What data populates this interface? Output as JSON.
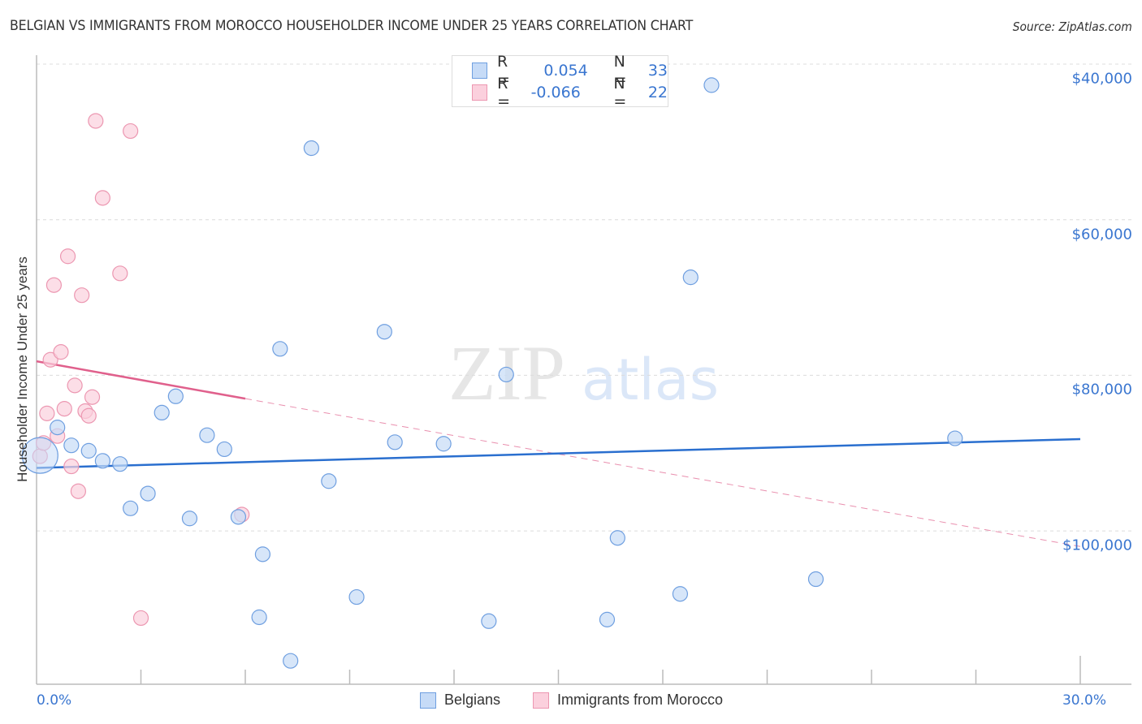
{
  "title": "BELGIAN VS IMMIGRANTS FROM MOROCCO HOUSEHOLDER INCOME UNDER 25 YEARS CORRELATION CHART",
  "source": "Source: ZipAtlas.com",
  "watermark": {
    "zip": "ZIP",
    "atlas": "atlas"
  },
  "colors": {
    "belgians_fill": "#c6dbf7",
    "belgians_stroke": "#6f9fe0",
    "belgians_line": "#2a6fcf",
    "morocco_fill": "#fbd0dd",
    "morocco_stroke": "#ec97b1",
    "morocco_line": "#e0608c",
    "axis_text": "#3a76d0"
  },
  "stats_legend": {
    "rows": [
      {
        "r_label": "R =",
        "r_value": "0.054",
        "n_label": "N =",
        "n_value": "33"
      },
      {
        "r_label": "R =",
        "r_value": "-0.066",
        "n_label": "N =",
        "n_value": "22"
      }
    ]
  },
  "bottom_legend": [
    {
      "label": "Belgians"
    },
    {
      "label": "Immigrants from Morocco"
    }
  ],
  "axes": {
    "ylabel": "Householder Income Under 25 years",
    "yticks": [
      "$100,000",
      "$80,000",
      "$60,000",
      "$40,000"
    ],
    "xticks": [
      "0.0%",
      "30.0%"
    ]
  },
  "chart_data": {
    "type": "scatter",
    "title": "BELGIAN VS IMMIGRANTS FROM MOROCCO HOUSEHOLDER INCOME UNDER 25 YEARS CORRELATION CHART",
    "xlabel": "",
    "ylabel": "Householder Income Under 25 years",
    "xlim": [
      0,
      30
    ],
    "ylim": [
      22000,
      102000
    ],
    "x_unit": "%",
    "ytick_values": [
      40000,
      60000,
      80000,
      100000
    ],
    "grid": true,
    "legend_position": "bottom",
    "series": [
      {
        "name": "Belgians",
        "R": 0.054,
        "N": 33,
        "trend": {
          "x": [
            0,
            30
          ],
          "y": [
            48100,
            51800
          ]
        },
        "points": [
          {
            "x": 0.1,
            "y": 49700,
            "large": true
          },
          {
            "x": 0.6,
            "y": 53300
          },
          {
            "x": 1.0,
            "y": 51000
          },
          {
            "x": 1.5,
            "y": 50300
          },
          {
            "x": 1.9,
            "y": 49000
          },
          {
            "x": 2.4,
            "y": 48600
          },
          {
            "x": 2.7,
            "y": 42900
          },
          {
            "x": 3.2,
            "y": 44800
          },
          {
            "x": 3.6,
            "y": 55200
          },
          {
            "x": 4.0,
            "y": 57300
          },
          {
            "x": 4.4,
            "y": 41600
          },
          {
            "x": 4.9,
            "y": 52300
          },
          {
            "x": 5.4,
            "y": 50500
          },
          {
            "x": 5.8,
            "y": 41800
          },
          {
            "x": 6.4,
            "y": 28900
          },
          {
            "x": 6.5,
            "y": 37000
          },
          {
            "x": 7.0,
            "y": 63400
          },
          {
            "x": 7.3,
            "y": 23300
          },
          {
            "x": 7.9,
            "y": 89200
          },
          {
            "x": 8.4,
            "y": 46400
          },
          {
            "x": 9.2,
            "y": 31500
          },
          {
            "x": 10.0,
            "y": 65600
          },
          {
            "x": 10.3,
            "y": 51400
          },
          {
            "x": 11.7,
            "y": 51200
          },
          {
            "x": 13.0,
            "y": 28400
          },
          {
            "x": 13.5,
            "y": 60100
          },
          {
            "x": 16.4,
            "y": 28600
          },
          {
            "x": 16.7,
            "y": 39100
          },
          {
            "x": 18.5,
            "y": 31900
          },
          {
            "x": 18.8,
            "y": 72600
          },
          {
            "x": 19.4,
            "y": 97300
          },
          {
            "x": 22.4,
            "y": 33800
          },
          {
            "x": 26.4,
            "y": 51900
          }
        ]
      },
      {
        "name": "Immigrants from Morocco",
        "R": -0.066,
        "N": 22,
        "trend": {
          "x": [
            0,
            6.0,
            30
          ],
          "y": [
            61800,
            57000,
            38000
          ],
          "solid_until_x": 6.0
        },
        "points": [
          {
            "x": 0.1,
            "y": 49600
          },
          {
            "x": 0.2,
            "y": 51300
          },
          {
            "x": 0.3,
            "y": 55100
          },
          {
            "x": 0.4,
            "y": 62000
          },
          {
            "x": 0.5,
            "y": 71600
          },
          {
            "x": 0.6,
            "y": 52200
          },
          {
            "x": 0.7,
            "y": 63000
          },
          {
            "x": 0.8,
            "y": 55700
          },
          {
            "x": 0.9,
            "y": 75300
          },
          {
            "x": 1.0,
            "y": 48300
          },
          {
            "x": 1.1,
            "y": 58700
          },
          {
            "x": 1.2,
            "y": 45100
          },
          {
            "x": 1.3,
            "y": 70300
          },
          {
            "x": 1.4,
            "y": 55400
          },
          {
            "x": 1.5,
            "y": 54800
          },
          {
            "x": 1.6,
            "y": 57200
          },
          {
            "x": 1.7,
            "y": 92700
          },
          {
            "x": 1.9,
            "y": 82800
          },
          {
            "x": 2.4,
            "y": 73100
          },
          {
            "x": 2.7,
            "y": 91400
          },
          {
            "x": 3.0,
            "y": 28800
          },
          {
            "x": 5.9,
            "y": 42100
          }
        ]
      }
    ]
  }
}
